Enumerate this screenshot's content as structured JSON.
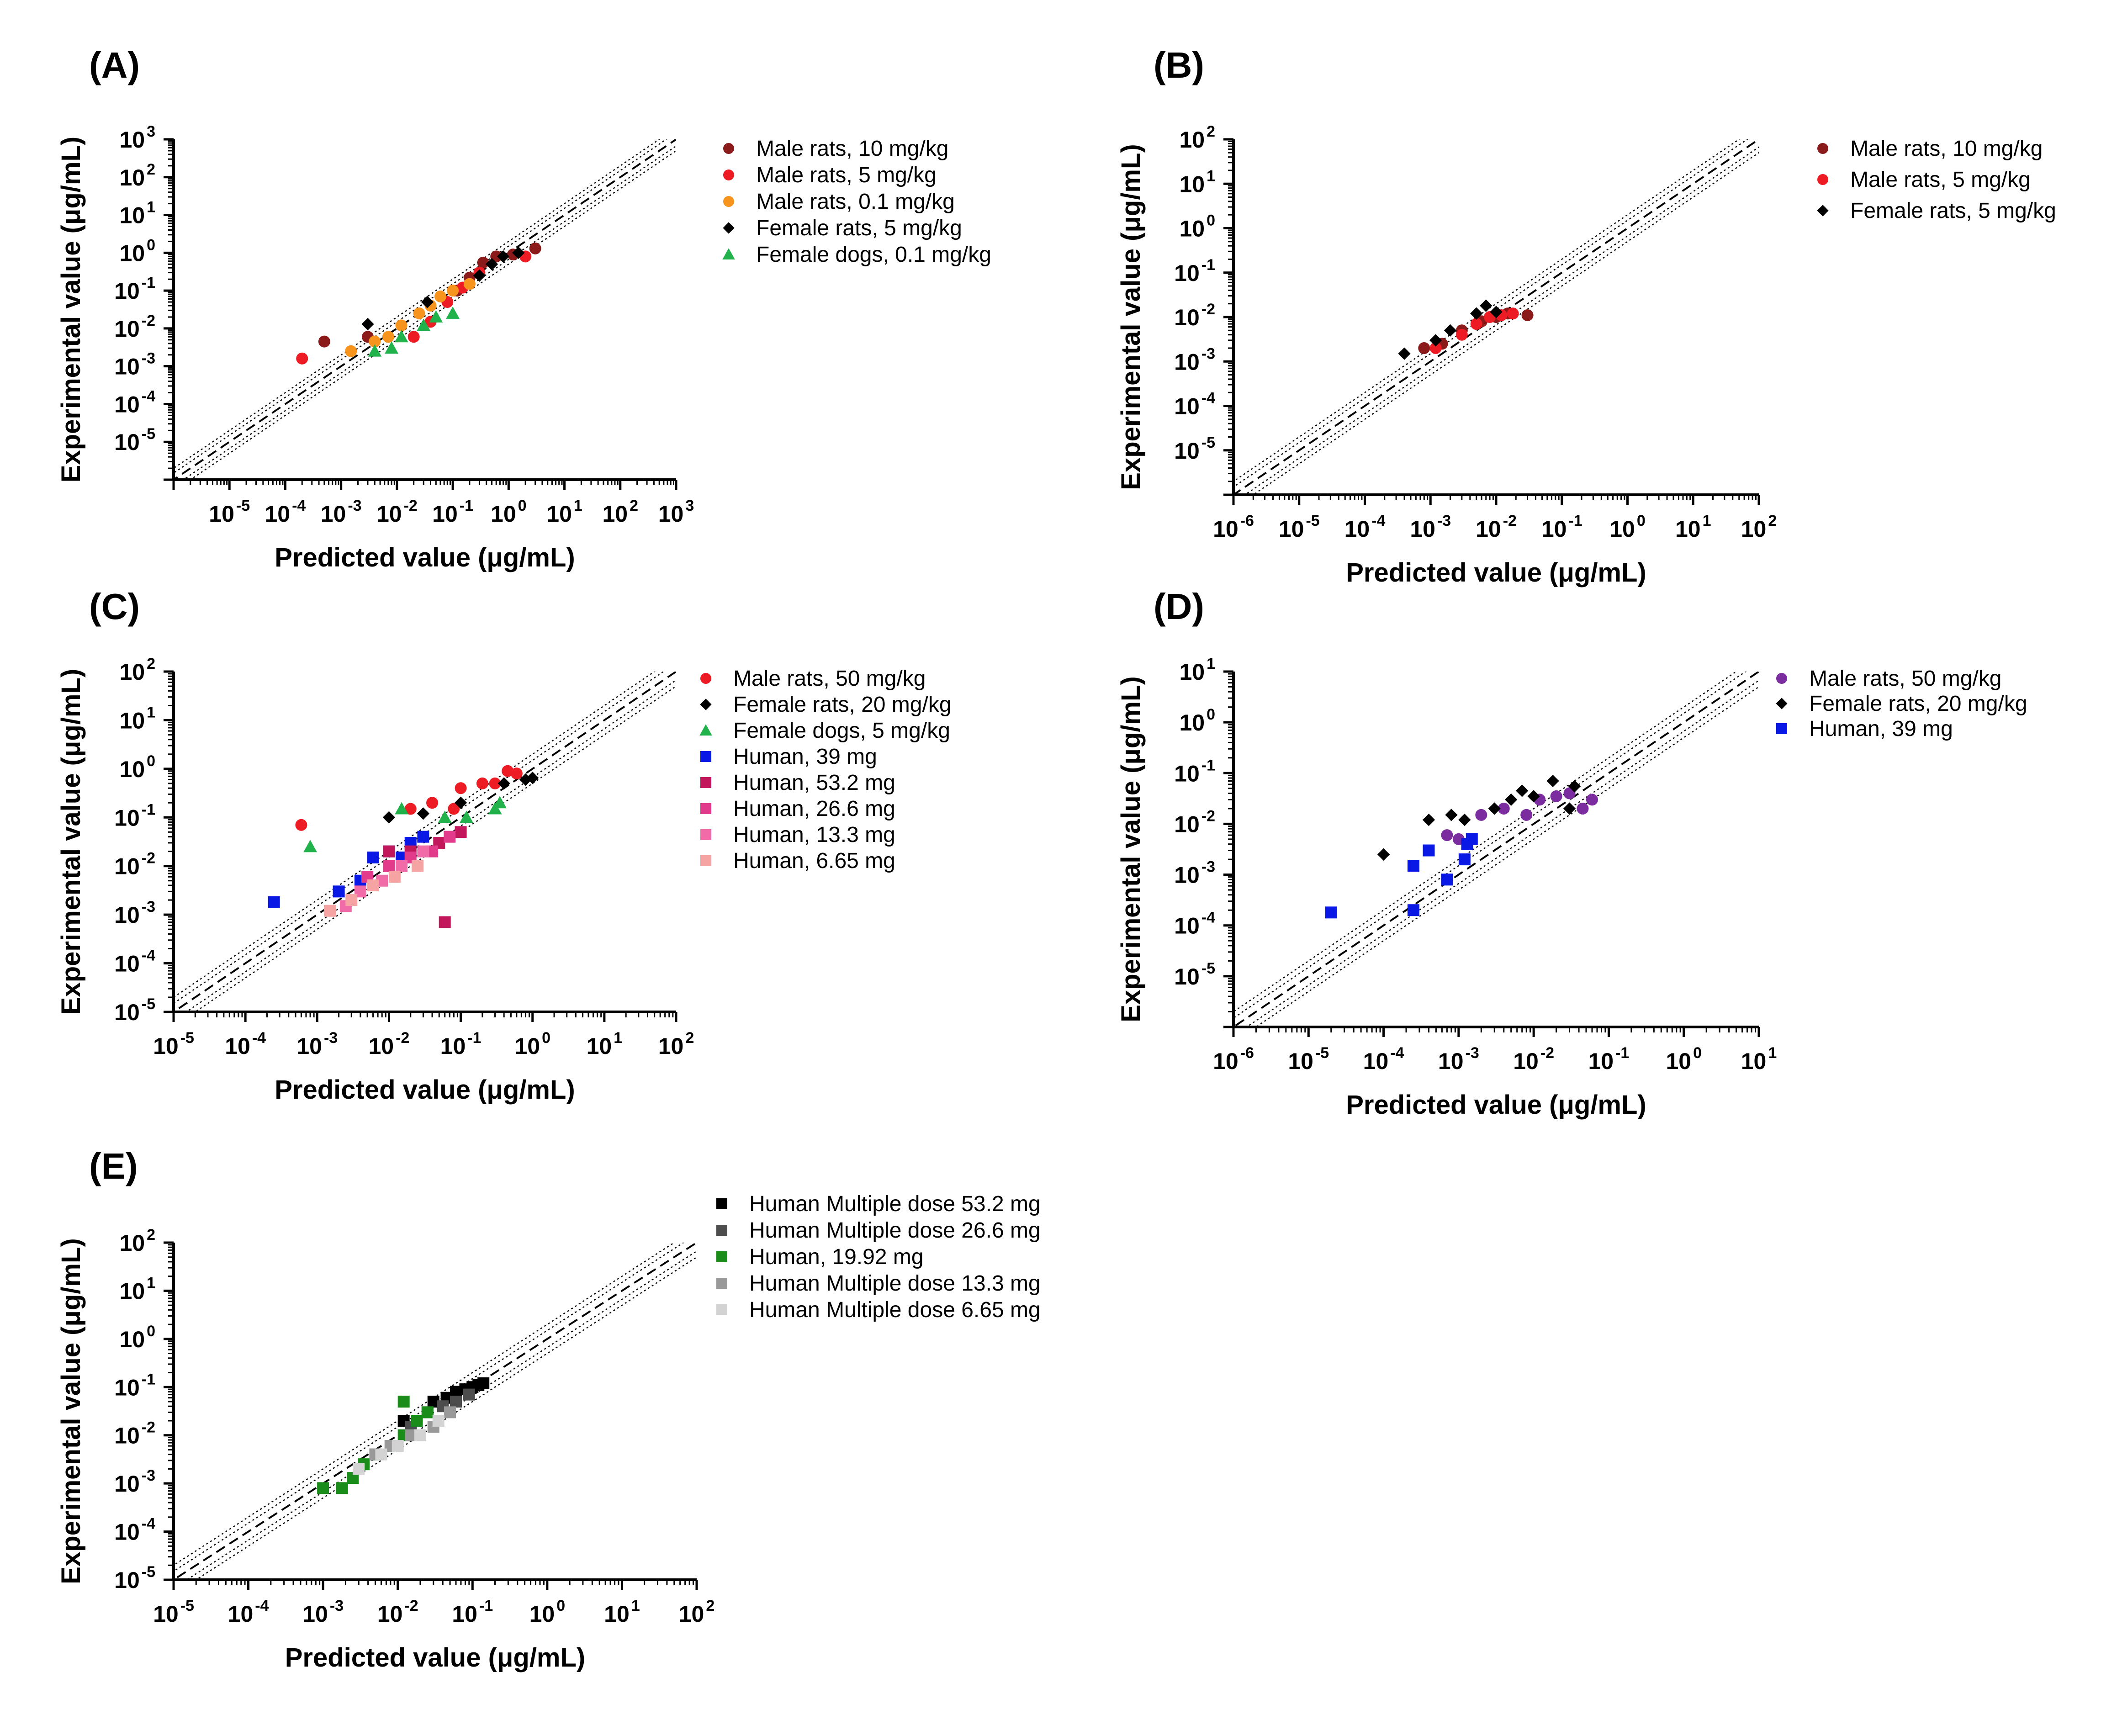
{
  "figure": {
    "panels": [
      {
        "id": "A",
        "label": "(A)"
      },
      {
        "id": "B",
        "label": "(B)"
      },
      {
        "id": "C",
        "label": "(C)"
      },
      {
        "id": "D",
        "label": "(D)"
      },
      {
        "id": "E",
        "label": "(E)"
      }
    ],
    "xlabel": "Predicted value (μg/mL)",
    "ylabel": "Experimental value (μg/mL)"
  },
  "chart_data": [
    {
      "panel": "A",
      "type": "scatter",
      "xscale": "log",
      "yscale": "log",
      "xlim": [
        1e-06,
        1000
      ],
      "ylim": [
        1e-06,
        1000
      ],
      "xticks": [
        -5,
        -4,
        -3,
        -2,
        -1,
        0,
        1,
        2,
        3
      ],
      "yticks": [
        -5,
        -4,
        -3,
        -2,
        -1,
        0,
        1,
        2,
        3
      ],
      "xlabel": "Predicted value (μg/mL)",
      "ylabel": "Experimental value (μg/mL)",
      "reference_lines": [
        "y = x (dashed)",
        "1.5-fold (dotted)",
        "2-fold (dotted)"
      ],
      "legend_position": "right",
      "series": [
        {
          "name": "Male rats, 10 mg/kg",
          "color": "#8B1A1A",
          "marker": "circle",
          "points": [
            [
              0.0005,
              0.0045
            ],
            [
              0.003,
              0.006
            ],
            [
              0.12,
              0.1
            ],
            [
              0.2,
              0.22
            ],
            [
              0.35,
              0.55
            ],
            [
              0.6,
              0.8
            ],
            [
              1.2,
              0.9
            ],
            [
              3.0,
              1.3
            ]
          ]
        },
        {
          "name": "Male rats, 5 mg/kg",
          "color": "#ED1C24",
          "marker": "circle",
          "points": [
            [
              0.0002,
              0.0016
            ],
            [
              0.02,
              0.006
            ],
            [
              0.04,
              0.015
            ],
            [
              0.08,
              0.05
            ],
            [
              0.15,
              0.12
            ],
            [
              0.3,
              0.3
            ],
            [
              2.0,
              0.8
            ]
          ]
        },
        {
          "name": "Male rats, 0.1 mg/kg",
          "color": "#F7941D",
          "marker": "circle",
          "points": [
            [
              0.0015,
              0.0025
            ],
            [
              0.004,
              0.0045
            ],
            [
              0.007,
              0.006
            ],
            [
              0.012,
              0.012
            ],
            [
              0.025,
              0.025
            ],
            [
              0.04,
              0.04
            ],
            [
              0.06,
              0.07
            ],
            [
              0.1,
              0.1
            ],
            [
              0.2,
              0.15
            ]
          ]
        },
        {
          "name": "Female rats, 5 mg/kg",
          "color": "#000000",
          "marker": "diamond",
          "points": [
            [
              0.003,
              0.013
            ],
            [
              0.035,
              0.05
            ],
            [
              0.3,
              0.25
            ],
            [
              0.5,
              0.5
            ],
            [
              0.8,
              0.8
            ],
            [
              1.5,
              1.0
            ]
          ]
        },
        {
          "name": "Female dogs, 0.1 mg/kg",
          "color": "#22B24C",
          "marker": "triangle",
          "points": [
            [
              0.004,
              0.0025
            ],
            [
              0.008,
              0.003
            ],
            [
              0.012,
              0.006
            ],
            [
              0.03,
              0.012
            ],
            [
              0.05,
              0.02
            ],
            [
              0.1,
              0.025
            ]
          ]
        }
      ]
    },
    {
      "panel": "B",
      "type": "scatter",
      "xscale": "log",
      "yscale": "log",
      "xlim": [
        1e-06,
        100
      ],
      "ylim": [
        1e-06,
        100
      ],
      "xticks": [
        -6,
        -5,
        -4,
        -3,
        -2,
        -1,
        0,
        1,
        2
      ],
      "yticks": [
        -5,
        -4,
        -3,
        -2,
        -1,
        0,
        1,
        2
      ],
      "xlabel": "Predicted value (μg/mL)",
      "ylabel": "Experimental value (μg/mL)",
      "reference_lines": [
        "y = x (dashed)",
        "1.5-fold (dotted)",
        "2-fold (dotted)"
      ],
      "legend_position": "right",
      "series": [
        {
          "name": "Male rats, 10 mg/kg",
          "color": "#8B1A1A",
          "marker": "circle",
          "points": [
            [
              0.0008,
              0.002
            ],
            [
              0.0015,
              0.0025
            ],
            [
              0.003,
              0.005
            ],
            [
              0.006,
              0.008
            ],
            [
              0.01,
              0.01
            ],
            [
              0.015,
              0.012
            ],
            [
              0.03,
              0.011
            ]
          ]
        },
        {
          "name": "Male rats, 5 mg/kg",
          "color": "#ED1C24",
          "marker": "circle",
          "points": [
            [
              0.0012,
              0.002
            ],
            [
              0.003,
              0.004
            ],
            [
              0.005,
              0.007
            ],
            [
              0.008,
              0.01
            ],
            [
              0.012,
              0.011
            ],
            [
              0.018,
              0.012
            ]
          ]
        },
        {
          "name": "Female rats, 5 mg/kg",
          "color": "#000000",
          "marker": "diamond",
          "points": [
            [
              0.0004,
              0.0015
            ],
            [
              0.0012,
              0.003
            ],
            [
              0.002,
              0.005
            ],
            [
              0.005,
              0.012
            ],
            [
              0.007,
              0.018
            ],
            [
              0.01,
              0.013
            ]
          ]
        }
      ]
    },
    {
      "panel": "C",
      "type": "scatter",
      "xscale": "log",
      "yscale": "log",
      "xlim": [
        1e-05,
        100
      ],
      "ylim": [
        1e-05,
        100
      ],
      "xticks": [
        -5,
        -4,
        -3,
        -2,
        -1,
        0,
        1,
        2
      ],
      "yticks": [
        -5,
        -4,
        -3,
        -2,
        -1,
        0,
        1,
        2
      ],
      "xlabel": "Predicted value (μg/mL)",
      "ylabel": "Experimental value (μg/mL)",
      "reference_lines": [
        "y = x (dashed)",
        "1.5-fold (dotted)",
        "2-fold (dotted)"
      ],
      "legend_position": "right",
      "series": [
        {
          "name": "Male rats, 50 mg/kg",
          "color": "#ED1C24",
          "marker": "circle",
          "points": [
            [
              0.0006,
              0.07
            ],
            [
              0.02,
              0.15
            ],
            [
              0.04,
              0.2
            ],
            [
              0.08,
              0.15
            ],
            [
              0.1,
              0.4
            ],
            [
              0.2,
              0.5
            ],
            [
              0.3,
              0.5
            ],
            [
              0.45,
              0.9
            ],
            [
              0.6,
              0.8
            ]
          ]
        },
        {
          "name": "Female rats, 20 mg/kg",
          "color": "#000000",
          "marker": "diamond",
          "points": [
            [
              0.01,
              0.1
            ],
            [
              0.03,
              0.12
            ],
            [
              0.1,
              0.2
            ],
            [
              0.4,
              0.5
            ],
            [
              0.8,
              0.6
            ],
            [
              1.0,
              0.65
            ]
          ]
        },
        {
          "name": "Female dogs, 5 mg/kg",
          "color": "#22B24C",
          "marker": "triangle",
          "points": [
            [
              0.0008,
              0.025
            ],
            [
              0.015,
              0.15
            ],
            [
              0.06,
              0.1
            ],
            [
              0.12,
              0.1
            ],
            [
              0.3,
              0.15
            ],
            [
              0.35,
              0.2
            ]
          ]
        },
        {
          "name": "Human, 39 mg",
          "color": "#0A18E6",
          "marker": "square",
          "points": [
            [
              0.00025,
              0.0018
            ],
            [
              0.002,
              0.003
            ],
            [
              0.004,
              0.005
            ],
            [
              0.006,
              0.015
            ],
            [
              0.01,
              0.02
            ],
            [
              0.015,
              0.015
            ],
            [
              0.02,
              0.03
            ],
            [
              0.03,
              0.04
            ]
          ]
        },
        {
          "name": "Human, 53.2 mg",
          "color": "#C2185B",
          "marker": "square",
          "points": [
            [
              0.01,
              0.02
            ],
            [
              0.02,
              0.02
            ],
            [
              0.05,
              0.03
            ],
            [
              0.06,
              0.0007
            ],
            [
              0.1,
              0.05
            ]
          ]
        },
        {
          "name": "Human, 26.6 mg",
          "color": "#E23B8C",
          "marker": "square",
          "points": [
            [
              0.005,
              0.006
            ],
            [
              0.01,
              0.01
            ],
            [
              0.02,
              0.015
            ],
            [
              0.04,
              0.02
            ],
            [
              0.07,
              0.04
            ]
          ]
        },
        {
          "name": "Human, 13.3 mg",
          "color": "#F06BA8",
          "marker": "square",
          "points": [
            [
              0.0025,
              0.0015
            ],
            [
              0.004,
              0.003
            ],
            [
              0.008,
              0.005
            ],
            [
              0.015,
              0.01
            ],
            [
              0.03,
              0.02
            ]
          ]
        },
        {
          "name": "Human, 6.65 mg",
          "color": "#F5A3A3",
          "marker": "square",
          "points": [
            [
              0.0015,
              0.0012
            ],
            [
              0.003,
              0.002
            ],
            [
              0.006,
              0.004
            ],
            [
              0.012,
              0.006
            ],
            [
              0.025,
              0.01
            ]
          ]
        }
      ]
    },
    {
      "panel": "D",
      "type": "scatter",
      "xscale": "log",
      "yscale": "log",
      "xlim": [
        1e-06,
        10
      ],
      "ylim": [
        1e-06,
        10
      ],
      "xticks": [
        -6,
        -5,
        -4,
        -3,
        -2,
        -1,
        0,
        1
      ],
      "yticks": [
        -5,
        -4,
        -3,
        -2,
        -1,
        0,
        1
      ],
      "xlabel": "Predicted value (μg/mL)",
      "ylabel": "Experimental value (μg/mL)",
      "reference_lines": [
        "y = x (dashed)",
        "1.5-fold (dotted)",
        "2-fold (dotted)"
      ],
      "legend_position": "right",
      "series": [
        {
          "name": "Male rats, 50 mg/kg",
          "color": "#7B2C9F",
          "marker": "circle",
          "points": [
            [
              0.0007,
              0.006
            ],
            [
              0.001,
              0.005
            ],
            [
              0.002,
              0.015
            ],
            [
              0.004,
              0.02
            ],
            [
              0.008,
              0.015
            ],
            [
              0.012,
              0.03
            ],
            [
              0.02,
              0.035
            ],
            [
              0.03,
              0.04
            ],
            [
              0.045,
              0.02
            ],
            [
              0.06,
              0.03
            ]
          ]
        },
        {
          "name": "Female rats, 20 mg/kg",
          "color": "#000000",
          "marker": "diamond",
          "points": [
            [
              0.0001,
              0.0025
            ],
            [
              0.0004,
              0.012
            ],
            [
              0.0008,
              0.015
            ],
            [
              0.0012,
              0.012
            ],
            [
              0.003,
              0.02
            ],
            [
              0.005,
              0.03
            ],
            [
              0.007,
              0.045
            ],
            [
              0.01,
              0.035
            ],
            [
              0.018,
              0.07
            ],
            [
              0.035,
              0.055
            ],
            [
              0.03,
              0.02
            ]
          ]
        },
        {
          "name": "Human, 39 mg",
          "color": "#0A18E6",
          "marker": "square",
          "points": [
            [
              2e-05,
              0.00018
            ],
            [
              0.00025,
              0.0002
            ],
            [
              0.00025,
              0.0015
            ],
            [
              0.0004,
              0.003
            ],
            [
              0.0007,
              0.0008
            ],
            [
              0.0012,
              0.002
            ],
            [
              0.0013,
              0.004
            ],
            [
              0.0015,
              0.005
            ]
          ]
        }
      ]
    },
    {
      "panel": "E",
      "type": "scatter",
      "xscale": "log",
      "yscale": "log",
      "xlim": [
        1e-05,
        100
      ],
      "ylim": [
        1e-05,
        100
      ],
      "xticks": [
        -5,
        -4,
        -3,
        -2,
        -1,
        0,
        1,
        2
      ],
      "yticks": [
        -5,
        -4,
        -3,
        -2,
        -1,
        0,
        1,
        2
      ],
      "xlabel": "Predicted value (μg/mL)",
      "ylabel": "Experimental value (μg/mL)",
      "reference_lines": [
        "y = x (dashed)",
        "1.5-fold (dotted)",
        "2-fold (dotted)"
      ],
      "legend_position": "right",
      "series": [
        {
          "name": "Human Multiple dose 53.2 mg",
          "color": "#000000",
          "marker": "square",
          "points": [
            [
              0.012,
              0.02
            ],
            [
              0.03,
              0.05
            ],
            [
              0.045,
              0.06
            ],
            [
              0.06,
              0.08
            ],
            [
              0.08,
              0.09
            ],
            [
              0.1,
              0.1
            ],
            [
              0.12,
              0.11
            ],
            [
              0.14,
              0.12
            ]
          ]
        },
        {
          "name": "Human Multiple dose 26.6 mg",
          "color": "#4D4D4D",
          "marker": "square",
          "points": [
            [
              0.015,
              0.015
            ],
            [
              0.025,
              0.03
            ],
            [
              0.04,
              0.04
            ],
            [
              0.06,
              0.05
            ],
            [
              0.09,
              0.07
            ]
          ]
        },
        {
          "name": "Human, 19.92 mg",
          "color": "#1A8C1A",
          "marker": "square",
          "points": [
            [
              0.001,
              0.0008
            ],
            [
              0.0018,
              0.0008
            ],
            [
              0.0025,
              0.0013
            ],
            [
              0.0035,
              0.0025
            ],
            [
              0.005,
              0.004
            ],
            [
              0.008,
              0.006
            ],
            [
              0.012,
              0.01
            ],
            [
              0.018,
              0.02
            ],
            [
              0.025,
              0.03
            ],
            [
              0.012,
              0.05
            ]
          ]
        },
        {
          "name": "Human Multiple dose 13.3 mg",
          "color": "#999999",
          "marker": "square",
          "points": [
            [
              0.005,
              0.004
            ],
            [
              0.008,
              0.006
            ],
            [
              0.015,
              0.01
            ],
            [
              0.03,
              0.015
            ],
            [
              0.05,
              0.03
            ]
          ]
        },
        {
          "name": "Human Multiple dose 6.65 mg",
          "color": "#D3D3D3",
          "marker": "square",
          "points": [
            [
              0.003,
              0.002
            ],
            [
              0.006,
              0.004
            ],
            [
              0.01,
              0.006
            ],
            [
              0.02,
              0.01
            ],
            [
              0.035,
              0.02
            ]
          ]
        }
      ]
    }
  ]
}
